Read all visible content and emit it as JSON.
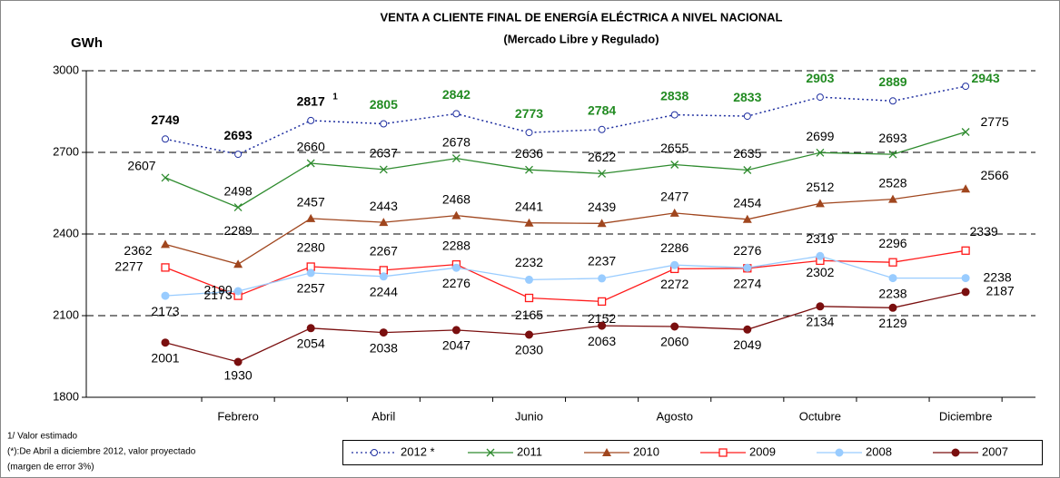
{
  "chart_data": {
    "type": "line",
    "title": "VENTA A CLIENTE FINAL DE ENERGÍA ELÉCTRICA A NIVEL NACIONAL",
    "subtitle": "(Mercado Libre y Regulado)",
    "y_label": "GWh",
    "superscript_label": "1",
    "notes": [
      "1/  Valor estimado",
      "(*):De Abril a diciembre 2012, valor proyectado",
      "(margen de error 3%)"
    ],
    "categories": [
      null,
      "Febrero",
      null,
      "Abril",
      null,
      "Junio",
      null,
      "Agosto",
      null,
      "Octubre",
      null,
      "Diciembre"
    ],
    "ylim": [
      1800,
      3000
    ],
    "yticks": [
      1800,
      2100,
      2400,
      2700,
      3000
    ],
    "grid": true,
    "legend": "bottom",
    "series": [
      {
        "name": "2012 *",
        "color": "#1f2fa0",
        "marker": "open-circle",
        "dash": "dotted",
        "values": [
          2749,
          2693,
          2817,
          2805,
          2842,
          2773,
          2784,
          2838,
          2833,
          2903,
          2889,
          2943
        ],
        "value_label_colors": [
          "#000000",
          "#000000",
          "#000000",
          "#228b22",
          "#228b22",
          "#228b22",
          "#228b22",
          "#228b22",
          "#228b22",
          "#228b22",
          "#228b22",
          "#228b22"
        ]
      },
      {
        "name": "2011",
        "color": "#2e8b2e",
        "marker": "x",
        "values": [
          2607,
          2498,
          2660,
          2637,
          2678,
          2636,
          2622,
          2655,
          2635,
          2699,
          2693,
          2775
        ]
      },
      {
        "name": "2010",
        "color": "#a0461e",
        "marker": "triangle",
        "values": [
          2362,
          2289,
          2457,
          2443,
          2468,
          2441,
          2439,
          2477,
          2454,
          2512,
          2528,
          2566
        ]
      },
      {
        "name": "2009",
        "color": "#ff1a1a",
        "marker": "open-square",
        "values": [
          2277,
          2173,
          2280,
          2267,
          2288,
          2165,
          2152,
          2272,
          2274,
          2302,
          2296,
          2339
        ]
      },
      {
        "name": "2008",
        "color": "#99ccff",
        "marker": "circle",
        "values": [
          2173,
          2190,
          2257,
          2244,
          2276,
          2232,
          2237,
          2286,
          2276,
          2319,
          2238,
          2238
        ]
      },
      {
        "name": "2007",
        "color": "#7a0f0f",
        "marker": "circle",
        "values": [
          2001,
          1930,
          2054,
          2038,
          2047,
          2030,
          2063,
          2060,
          2049,
          2134,
          2129,
          2187
        ]
      }
    ]
  }
}
